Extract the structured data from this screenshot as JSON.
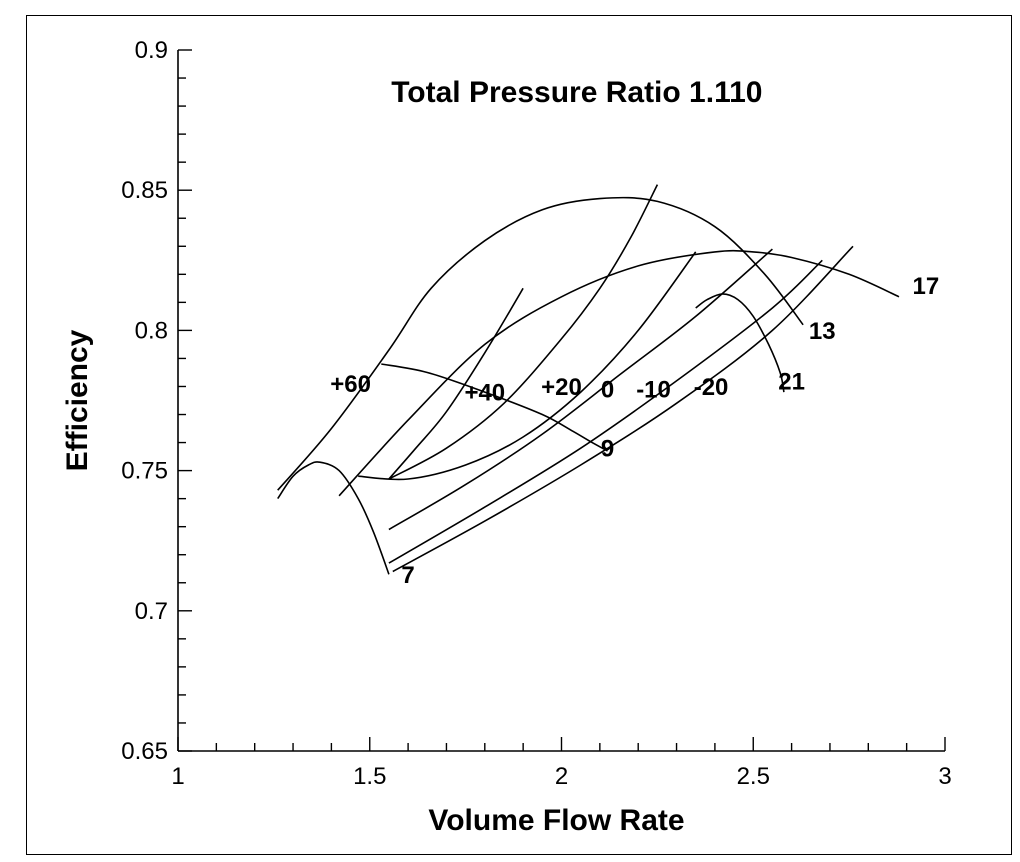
{
  "chart_data": {
    "type": "line",
    "title": "Total Pressure Ratio 1.110",
    "xlabel": "Volume Flow Rate",
    "ylabel": "Efficiency",
    "xlim": [
      1,
      3
    ],
    "ylim": [
      0.65,
      0.9
    ],
    "xticks": [
      {
        "value": 1,
        "label": "1"
      },
      {
        "value": 1.5,
        "label": "1.5"
      },
      {
        "value": 2,
        "label": "2"
      },
      {
        "value": 2.5,
        "label": "2.5"
      },
      {
        "value": 3,
        "label": "3"
      }
    ],
    "yticks": [
      {
        "value": 0.65,
        "label": "0.65"
      },
      {
        "value": 0.7,
        "label": "0.7"
      },
      {
        "value": 0.75,
        "label": "0.75"
      },
      {
        "value": 0.8,
        "label": "0.8"
      },
      {
        "value": 0.85,
        "label": "0.85"
      },
      {
        "value": 0.9,
        "label": "0.9"
      }
    ],
    "x_minor_step": 0.1,
    "y_minor_step": 0.01,
    "grid": false,
    "series": [
      {
        "name": "7",
        "label_x": 1.6,
        "label_y": 0.71,
        "x": [
          1.26,
          1.3,
          1.34,
          1.37,
          1.42,
          1.47,
          1.51,
          1.55
        ],
        "y": [
          0.74,
          0.748,
          0.752,
          0.753,
          0.75,
          0.74,
          0.728,
          0.713
        ]
      },
      {
        "name": "9",
        "label_x": 2.12,
        "label_y": 0.755,
        "x": [
          1.53,
          1.65,
          1.8,
          1.95,
          2.03,
          2.08,
          2.12
        ],
        "y": [
          0.788,
          0.785,
          0.778,
          0.77,
          0.764,
          0.76,
          0.757
        ]
      },
      {
        "name": "13",
        "label_x": 2.68,
        "label_y": 0.797,
        "x": [
          1.26,
          1.4,
          1.55,
          1.66,
          1.8,
          1.95,
          2.1,
          2.25,
          2.4,
          2.53,
          2.63
        ],
        "y": [
          0.743,
          0.765,
          0.793,
          0.815,
          0.832,
          0.843,
          0.847,
          0.846,
          0.837,
          0.82,
          0.802
        ]
      },
      {
        "name": "17",
        "label_x": 2.95,
        "label_y": 0.813,
        "x": [
          1.42,
          1.6,
          1.8,
          2.0,
          2.2,
          2.4,
          2.5,
          2.6,
          2.75,
          2.88
        ],
        "y": [
          0.741,
          0.768,
          0.795,
          0.812,
          0.823,
          0.828,
          0.828,
          0.826,
          0.82,
          0.812
        ]
      },
      {
        "name": "21",
        "label_x": 2.6,
        "label_y": 0.779,
        "x": [
          2.35,
          2.38,
          2.42,
          2.46,
          2.5,
          2.54,
          2.57,
          2.58
        ],
        "y": [
          0.808,
          0.811,
          0.813,
          0.811,
          0.805,
          0.795,
          0.785,
          0.778
        ]
      },
      {
        "name": "+60",
        "label_x": 1.45,
        "label_y": 0.778,
        "x": [
          1.55,
          1.62,
          1.7,
          1.8,
          1.9
        ],
        "y": [
          0.747,
          0.758,
          0.771,
          0.792,
          0.815
        ]
      },
      {
        "name": "+40",
        "label_x": 1.8,
        "label_y": 0.775,
        "x": [
          1.55,
          1.7,
          1.85,
          2.0,
          2.1,
          2.18,
          2.25
        ],
        "y": [
          0.747,
          0.758,
          0.774,
          0.797,
          0.815,
          0.833,
          0.852
        ]
      },
      {
        "name": "+20",
        "label_x": 2.0,
        "label_y": 0.777,
        "x": [
          1.47,
          1.6,
          1.75,
          1.9,
          2.05,
          2.2,
          2.35
        ],
        "y": [
          0.748,
          0.747,
          0.752,
          0.762,
          0.778,
          0.8,
          0.828
        ]
      },
      {
        "name": "0",
        "label_x": 2.12,
        "label_y": 0.776,
        "x": [
          1.55,
          1.75,
          1.95,
          2.15,
          2.35,
          2.55
        ],
        "y": [
          0.729,
          0.745,
          0.763,
          0.784,
          0.805,
          0.829
        ]
      },
      {
        "name": "-10",
        "label_x": 2.24,
        "label_y": 0.776,
        "x": [
          1.55,
          1.8,
          2.05,
          2.3,
          2.55,
          2.68
        ],
        "y": [
          0.717,
          0.737,
          0.758,
          0.782,
          0.808,
          0.825
        ]
      },
      {
        "name": "-20",
        "label_x": 2.39,
        "label_y": 0.777,
        "x": [
          1.56,
          1.8,
          2.05,
          2.3,
          2.55,
          2.76
        ],
        "y": [
          0.714,
          0.732,
          0.752,
          0.774,
          0.8,
          0.83
        ]
      }
    ]
  }
}
